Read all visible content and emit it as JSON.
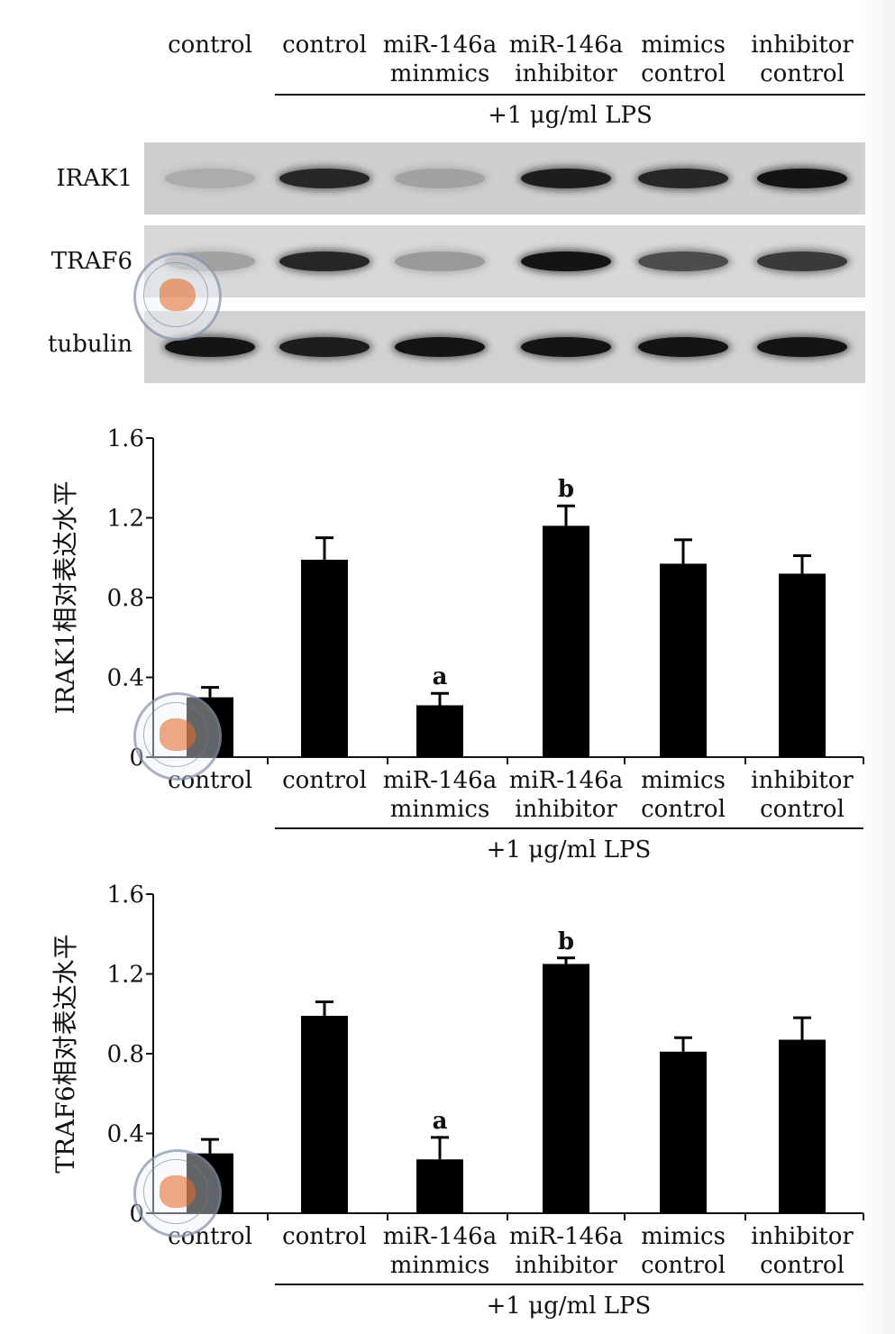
{
  "lanes": [
    {
      "line1": "control",
      "line2": ""
    },
    {
      "line1": "control",
      "line2": ""
    },
    {
      "line1": "miR-146a",
      "line2": "minmics"
    },
    {
      "line1": "miR-146a",
      "line2": "inhibitor"
    },
    {
      "line1": "mimics",
      "line2": "control"
    },
    {
      "line1": "inhibitor",
      "line2": "control"
    }
  ],
  "lps_label": "+1 μg/ml LPS",
  "blots": [
    {
      "label": "IRAK1",
      "intensity": [
        0.15,
        0.85,
        0.2,
        0.9,
        0.85,
        0.95
      ]
    },
    {
      "label": "TRAF6",
      "intensity": [
        0.2,
        0.85,
        0.25,
        0.95,
        0.65,
        0.75
      ]
    },
    {
      "label": "tubulin",
      "intensity": [
        0.95,
        0.9,
        0.95,
        0.95,
        0.95,
        0.95
      ]
    }
  ],
  "colors": {
    "bar": "#000000",
    "axis": "#111111",
    "stamp": "#e88a5a"
  },
  "chart_data": [
    {
      "type": "bar",
      "ylabel": "IRAK1相对表达水平",
      "ylim": [
        0,
        1.6
      ],
      "yticks": [
        "0",
        "0.4",
        "0.8",
        "1.2",
        "1.6"
      ],
      "categories": [
        "control",
        "control",
        "miR-146a minmics",
        "miR-146a inhibitor",
        "mimics control",
        "inhibitor control"
      ],
      "values": [
        0.3,
        0.99,
        0.26,
        1.16,
        0.97,
        0.92
      ],
      "errors": [
        0.05,
        0.11,
        0.06,
        0.1,
        0.12,
        0.09
      ],
      "annotations": [
        "",
        "",
        "a",
        "b",
        "",
        ""
      ]
    },
    {
      "type": "bar",
      "ylabel": "TRAF6相对表达水平",
      "ylim": [
        0,
        1.6
      ],
      "yticks": [
        "0",
        "0.4",
        "0.8",
        "1.2",
        "1.6"
      ],
      "categories": [
        "control",
        "control",
        "miR-146a minmics",
        "miR-146a inhibitor",
        "mimics control",
        "inhibitor control"
      ],
      "values": [
        0.3,
        0.99,
        0.27,
        1.25,
        0.81,
        0.87
      ],
      "errors": [
        0.07,
        0.07,
        0.11,
        0.03,
        0.07,
        0.11
      ],
      "annotations": [
        "",
        "",
        "a",
        "b",
        "",
        ""
      ]
    }
  ]
}
